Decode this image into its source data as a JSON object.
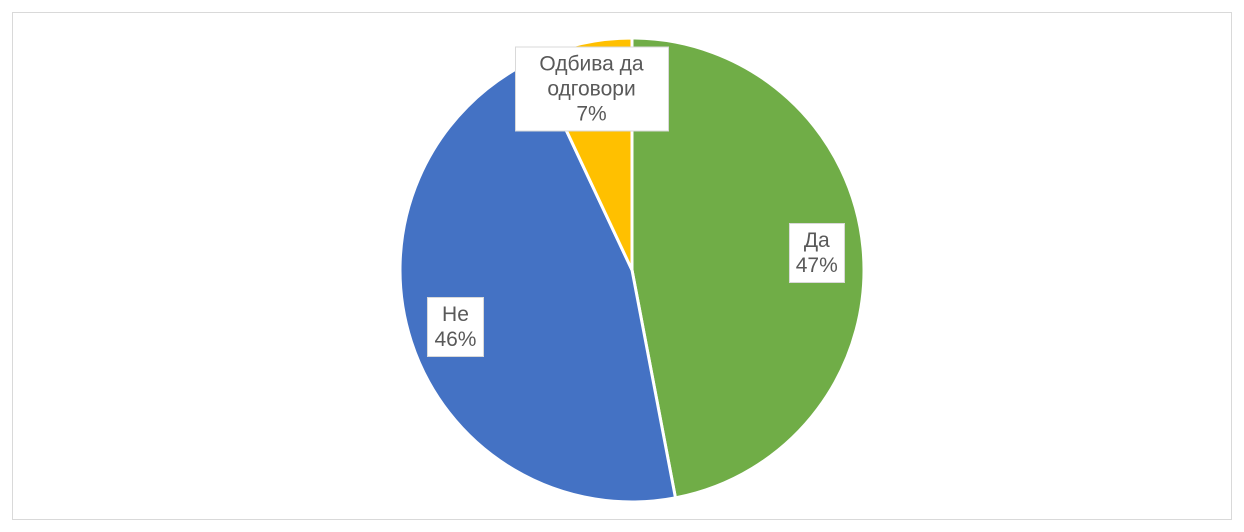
{
  "chart_data": {
    "type": "pie",
    "categories": [
      "Да",
      "Не",
      "Одбива да одговори"
    ],
    "values": [
      47,
      46,
      7
    ],
    "value_labels": [
      "47%",
      "46%",
      "7%"
    ],
    "colors": [
      "#70ad47",
      "#4472c4",
      "#ffc000"
    ]
  }
}
